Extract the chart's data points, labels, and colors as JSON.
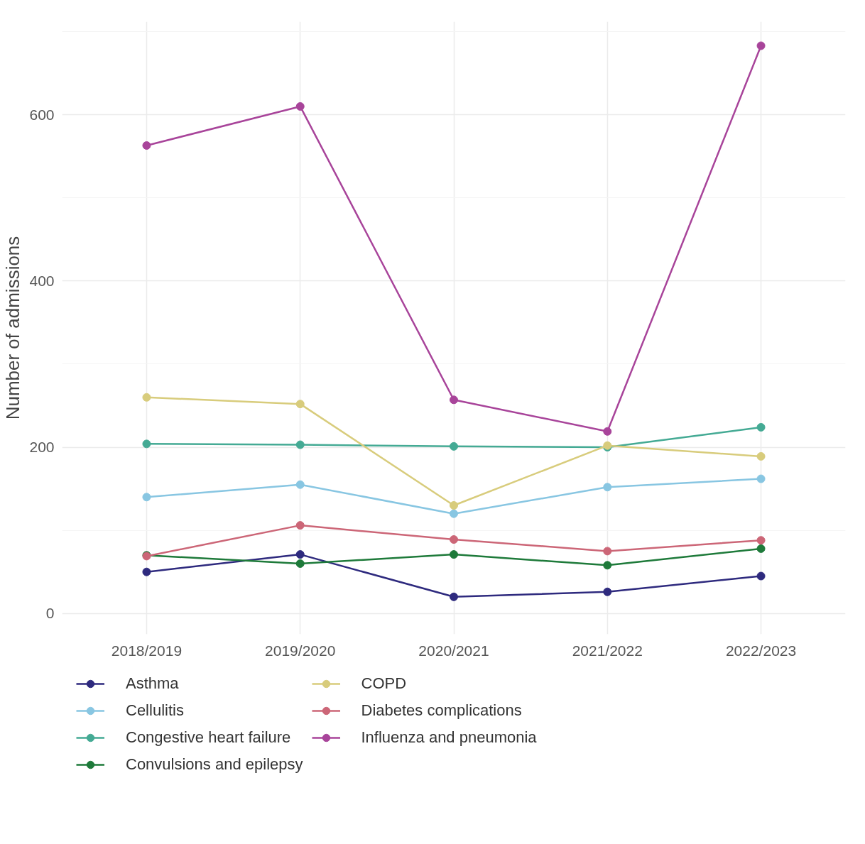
{
  "chart_data": {
    "type": "line",
    "ylabel": "Number of admissions",
    "categories": [
      "2018/2019",
      "2019/2020",
      "2020/2021",
      "2021/2022",
      "2022/2023"
    ],
    "series": [
      {
        "name": "Asthma",
        "color": "#2e2a7e",
        "values": [
          50,
          71,
          20,
          26,
          45
        ]
      },
      {
        "name": "Cellulitis",
        "color": "#88c6e2",
        "values": [
          140,
          155,
          120,
          152,
          162
        ]
      },
      {
        "name": "Congestive heart failure",
        "color": "#44aa94",
        "values": [
          204,
          203,
          201,
          200,
          224
        ]
      },
      {
        "name": "Convulsions and epilepsy",
        "color": "#1e7a3a",
        "values": [
          70,
          60,
          71,
          58,
          78
        ]
      },
      {
        "name": "COPD",
        "color": "#d8cc7c",
        "values": [
          260,
          252,
          130,
          202,
          189
        ]
      },
      {
        "name": "Diabetes complications",
        "color": "#cc6677",
        "values": [
          69,
          106,
          89,
          75,
          88
        ]
      },
      {
        "name": "Influenza and pneumonia",
        "color": "#a8449a",
        "values": [
          563,
          610,
          257,
          219,
          683
        ]
      }
    ],
    "ylim": [
      -25,
      712
    ],
    "yticks": [
      0,
      200,
      400,
      600
    ],
    "grid": true,
    "legend": "bottom",
    "marker": "circle",
    "line_style": "solid"
  }
}
